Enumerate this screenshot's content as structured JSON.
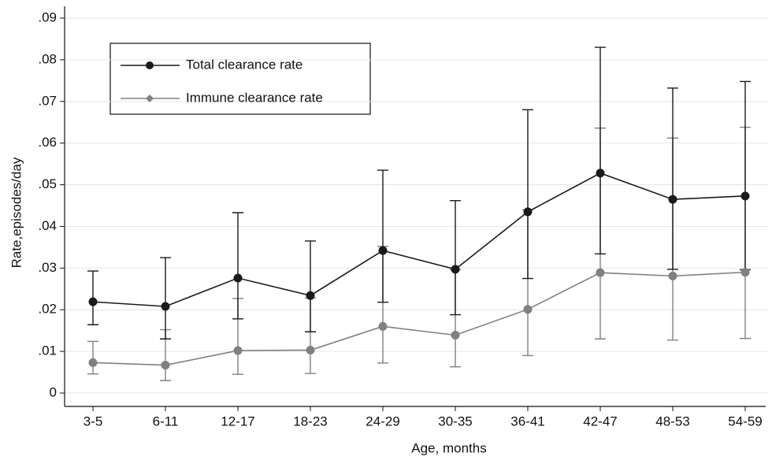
{
  "chart_data": {
    "type": "line_errorbar",
    "x_label": "Age, months",
    "y_label": "Rate,episodes/day",
    "categories": [
      "3-5",
      "6-11",
      "12-17",
      "18-23",
      "24-29",
      "30-35",
      "36-41",
      "42-47",
      "48-53",
      "54-59"
    ],
    "series": [
      {
        "name": "Total clearance rate",
        "color": "#1a1a1a",
        "values": [
          0.0219,
          0.0208,
          0.0276,
          0.0234,
          0.0342,
          0.0297,
          0.0435,
          0.0528,
          0.0465,
          0.0473
        ],
        "lower": [
          0.0164,
          0.013,
          0.0178,
          0.0147,
          0.0218,
          0.0188,
          0.0275,
          0.0334,
          0.0297,
          0.0296
        ],
        "upper": [
          0.0293,
          0.0325,
          0.0433,
          0.0365,
          0.0535,
          0.0462,
          0.068,
          0.083,
          0.0732,
          0.0748
        ]
      },
      {
        "name": "Immune clearance rate",
        "color": "#808080",
        "values": [
          0.0073,
          0.0067,
          0.0102,
          0.0103,
          0.016,
          0.0139,
          0.0201,
          0.0289,
          0.0281,
          0.029
        ],
        "lower": [
          0.0046,
          0.003,
          0.0045,
          0.0047,
          0.0072,
          0.0063,
          0.009,
          0.013,
          0.0127,
          0.0131
        ],
        "upper": [
          0.0124,
          0.0152,
          0.0227,
          0.0228,
          0.0352,
          0.0296,
          0.044,
          0.0636,
          0.0612,
          0.0638
        ]
      }
    ],
    "ylim": [
      0,
      0.09
    ],
    "yticks": [
      {
        "value": 0,
        "label": "0"
      },
      {
        "value": 0.01,
        "label": ".01"
      },
      {
        "value": 0.02,
        "label": ".02"
      },
      {
        "value": 0.03,
        "label": ".03"
      },
      {
        "value": 0.04,
        "label": ".04"
      },
      {
        "value": 0.05,
        "label": ".05"
      },
      {
        "value": 0.06,
        "label": ".06"
      },
      {
        "value": 0.07,
        "label": ".07"
      },
      {
        "value": 0.08,
        "label": ".08"
      },
      {
        "value": 0.09,
        "label": ".09"
      }
    ],
    "grid": true
  }
}
